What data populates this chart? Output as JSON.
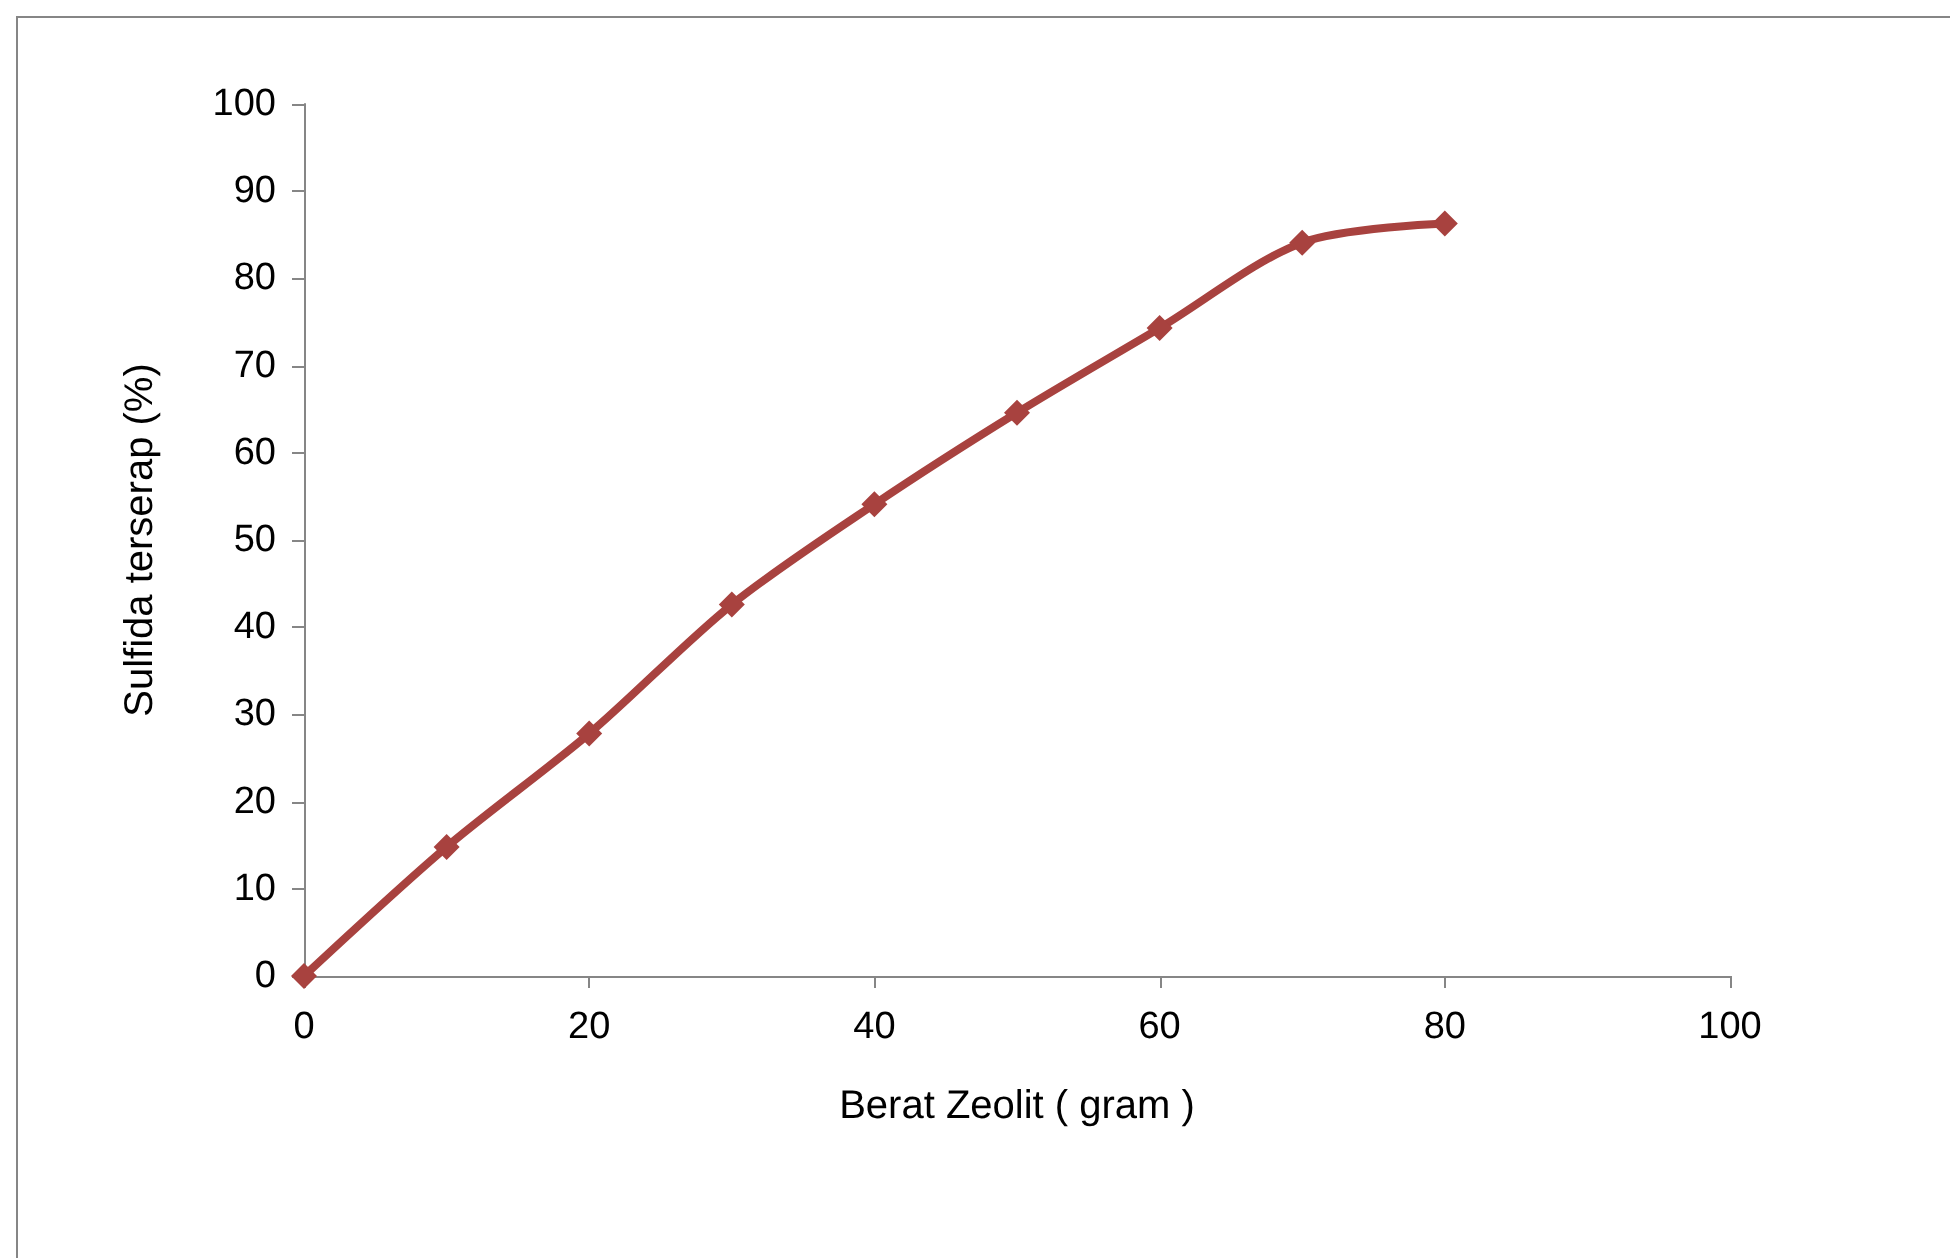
{
  "chart_data": {
    "type": "line",
    "xlabel": "Berat Zeolit ( gram )",
    "ylabel": "Sulfida terserap (%)",
    "x": [
      0,
      10,
      20,
      30,
      40,
      50,
      60,
      70,
      80
    ],
    "series": [
      {
        "color": "#a8423f",
        "values": [
          0,
          14.8,
          27.8,
          42.6,
          54.1,
          64.6,
          74.3,
          84.1,
          86.3
        ]
      }
    ],
    "xlim": [
      0,
      100
    ],
    "xticks": [
      0,
      20,
      40,
      60,
      80,
      100
    ],
    "ylim": [
      0,
      100
    ],
    "yticks": [
      0,
      10,
      20,
      30,
      40,
      50,
      60,
      70,
      80,
      90,
      100
    ],
    "grid": false,
    "marker": "diamond",
    "line_style": "solid"
  }
}
